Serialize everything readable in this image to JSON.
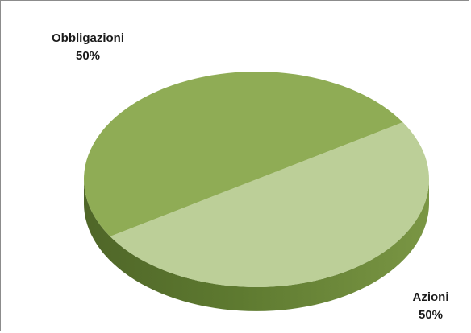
{
  "chart_data": {
    "type": "pie",
    "title": "",
    "legend": "none",
    "slices": [
      {
        "name": "Obbligazioni",
        "value": 50,
        "label": "50%",
        "color": "#bccf98"
      },
      {
        "name": "Azioni",
        "value": 50,
        "label": "50%",
        "color": "#8fac55"
      }
    ],
    "side_color_dark": "#4f6628",
    "side_color_light": "#7a9644"
  }
}
